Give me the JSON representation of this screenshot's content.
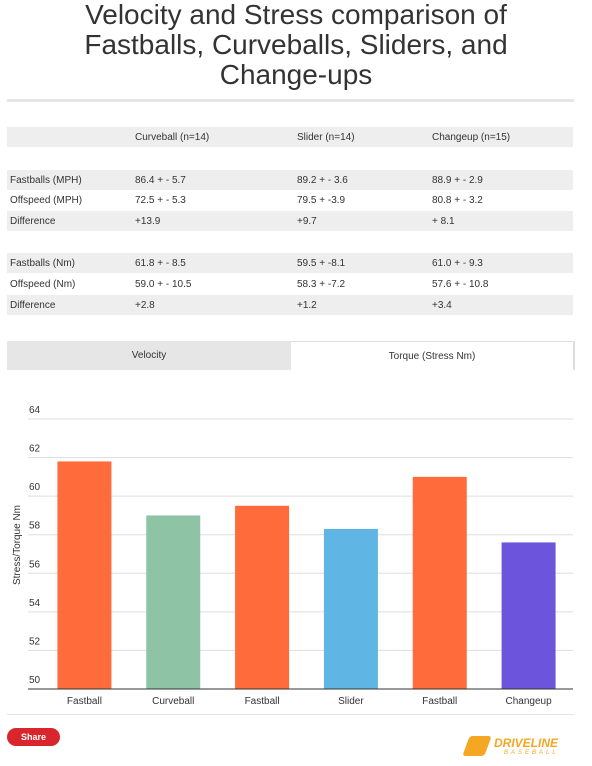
{
  "title": "Velocity and Stress comparison of Fastballs, Curveballs, Sliders, and Change-ups",
  "table": {
    "columns": [
      "Curveball (n=14)",
      "Slider (n=14)",
      "Changeup (n=15)"
    ],
    "rows": [
      [
        "Fastballs (MPH)",
        "86.4 + - 5.7",
        "89.2 + - 3.6",
        "88.9 + - 2.9"
      ],
      [
        "Offspeed (MPH)",
        "72.5 + - 5.3",
        "79.5 + -3.9",
        "80.8 + - 3.2"
      ],
      [
        "Difference",
        "+13.9",
        "+9.7",
        "+ 8.1"
      ],
      [
        "Fastballs (Nm)",
        "61.8 + - 8.5",
        "59.5 + -8.1",
        "61.0 + - 9.3"
      ],
      [
        "Offspeed (Nm)",
        "59.0 + - 10.5",
        "58.3 + -7.2",
        "57.6 + - 10.8"
      ],
      [
        "Difference",
        "+2.8",
        "+1.2",
        "+3.4"
      ]
    ]
  },
  "tabs": [
    "Velocity",
    "Torque (Stress Nm)"
  ],
  "chart_data": {
    "type": "bar",
    "y_label": "Stress/Torque Nm",
    "categories": [
      "Fastball",
      "Curveball",
      "Fastball",
      "Slider",
      "Fastball",
      "Changeup"
    ],
    "values": [
      61.8,
      59.0,
      59.5,
      58.3,
      61.0,
      57.6
    ],
    "colors": [
      "#ff6b3b",
      "#8fc3a6",
      "#ff6b3b",
      "#5fb5e3",
      "#ff6b3b",
      "#6c55dc"
    ],
    "ylim": [
      50,
      64
    ],
    "yticks": [
      50,
      52,
      54,
      56,
      58,
      60,
      62,
      64
    ],
    "grid": true
  },
  "share": "Share",
  "logo": {
    "name": "DRIVELINE",
    "sub": "BASEBALL"
  }
}
